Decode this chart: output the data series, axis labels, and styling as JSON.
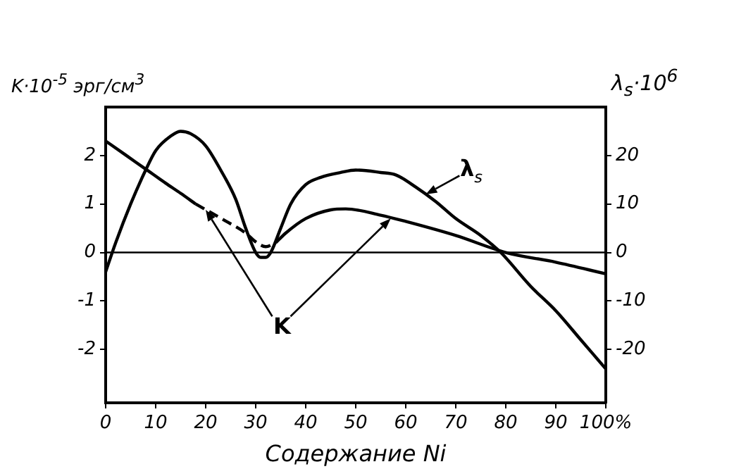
{
  "chart_data": {
    "type": "line",
    "xlabel": "Содержание Ni",
    "ylabel": "K·10$^{-5}$ эрг/см$^{3}$",
    "y2label": "λ$_{s}$·10$^{6}$",
    "xlim": [
      0,
      100
    ],
    "xticks": [
      0,
      10,
      20,
      30,
      40,
      50,
      60,
      70,
      80,
      90,
      {
        "value": 100,
        "label": "100%"
      }
    ],
    "ylim": [
      -3.1,
      3.0
    ],
    "yticks": [
      -2,
      -1,
      0,
      1,
      2
    ],
    "y2lim": [
      -31,
      30
    ],
    "y2ticks": [
      -20,
      -10,
      0,
      10,
      20
    ],
    "grid": false,
    "legend": false,
    "marker": "none",
    "ref_lines": [
      {
        "axis": "y",
        "value": 0,
        "color": "#000000"
      }
    ],
    "annotations": [
      {
        "text": "K",
        "x": 20,
        "y": 0.88
      },
      "λ$_{s}$"
    ],
    "series": [
      {
        "color": "#000000",
        "axis": "y2",
        "line_style": "solid",
        "x": [
          0,
          2,
          5,
          8,
          10,
          13,
          15,
          17,
          20,
          23,
          26,
          28,
          30,
          31,
          32,
          33,
          35,
          37,
          40,
          43,
          47,
          50,
          55,
          58,
          62,
          66,
          70,
          75,
          79,
          85,
          90,
          95,
          100
        ],
        "values": [
          -4,
          2,
          10,
          17,
          21,
          24,
          25,
          24.5,
          22,
          17,
          11,
          5,
          0,
          -1,
          -1,
          0,
          5,
          10,
          14,
          15.5,
          16.5,
          17,
          16.5,
          16,
          13.5,
          10.5,
          7,
          3.5,
          0,
          -7,
          -12,
          -18,
          -24
        ]
      },
      {
        "color": "#000000",
        "axis": "y",
        "line_style": "solid",
        "x": [
          0,
          4,
          8,
          12,
          15,
          18
        ],
        "values": [
          2.3,
          2.01,
          1.72,
          1.43,
          1.22,
          1.0
        ]
      },
      {
        "color": "#000000",
        "axis": "y",
        "line_style": "dashed",
        "x": [
          18,
          24,
          28,
          30,
          32,
          34
        ],
        "values": [
          1.0,
          0.65,
          0.4,
          0.22,
          0.12,
          0.2
        ]
      },
      {
        "color": "#000000",
        "axis": "y",
        "line_style": "solid",
        "x": [
          34,
          36,
          40,
          45,
          48,
          55,
          60,
          70,
          80,
          90,
          100
        ],
        "values": [
          0.2,
          0.4,
          0.7,
          0.88,
          0.9,
          0.77,
          0.64,
          0.35,
          0,
          -0.2,
          -0.44
        ]
      }
    ]
  }
}
